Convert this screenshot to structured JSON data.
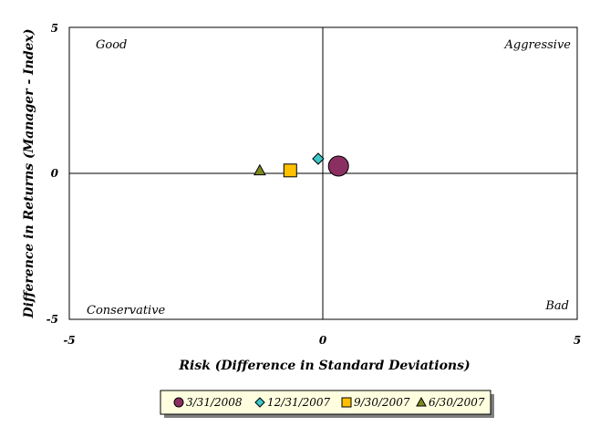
{
  "chart_data": {
    "type": "scatter",
    "xlabel": "Risk (Difference in Standard Deviations)",
    "ylabel": "Difference in Returns (Manager - Index)",
    "xlim": [
      -5,
      5
    ],
    "ylim": [
      -5,
      5
    ],
    "x_ticks": [
      "-5",
      "0",
      "5"
    ],
    "y_ticks": [
      "5",
      "0",
      "-5"
    ],
    "quadrant_labels": {
      "top_left": "Good",
      "top_right": "Aggressive",
      "bottom_left": "Conservative",
      "bottom_right": "Bad"
    },
    "legend_position": "bottom",
    "series": [
      {
        "name": "3/31/2008",
        "marker": "circle",
        "color": "#8b2f63",
        "x": 0.3,
        "y": 0.25
      },
      {
        "name": "12/31/2007",
        "marker": "diamond",
        "color": "#3cc8c8",
        "x": -0.1,
        "y": 0.5
      },
      {
        "name": "9/30/2007",
        "marker": "square",
        "color": "#ffc000",
        "x": -0.65,
        "y": 0.1
      },
      {
        "name": "6/30/2007",
        "marker": "triangle",
        "color": "#7f8a1e",
        "x": -1.25,
        "y": 0.1
      }
    ]
  }
}
